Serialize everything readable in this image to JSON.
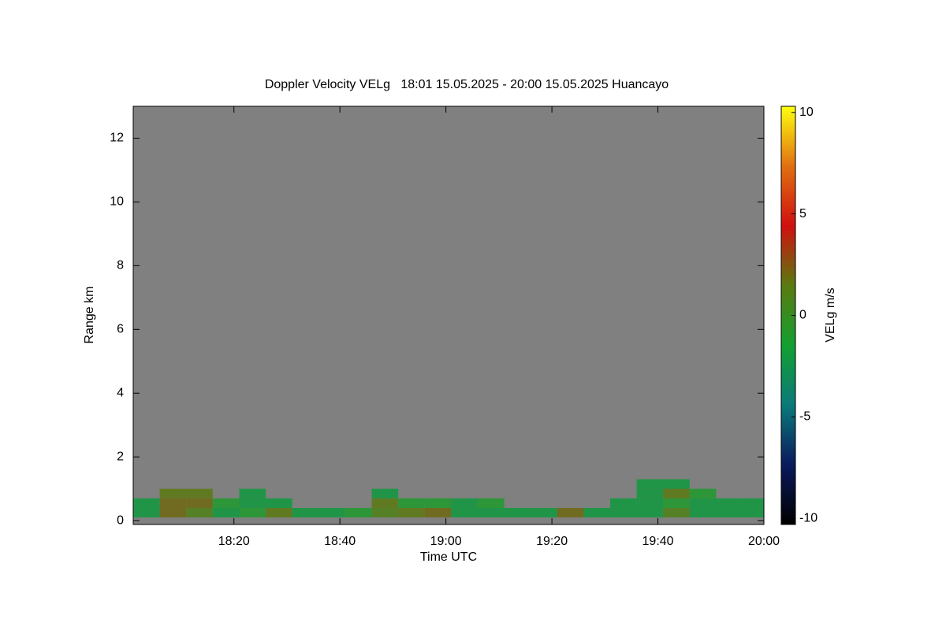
{
  "chart_data": {
    "type": "heatmap",
    "title": "Doppler Velocity VELg   18:01 15.05.2025 - 20:00 15.05.2025 Huancayo",
    "x_label": "Time UTC",
    "y_label": "Range km",
    "colorbar_label": "VELg m/s",
    "xlim": [
      1081,
      1200
    ],
    "xticks": [
      {
        "value": 1100,
        "label": "18:20"
      },
      {
        "value": 1120,
        "label": "18:40"
      },
      {
        "value": 1140,
        "label": "19:00"
      },
      {
        "value": 1160,
        "label": "19:20"
      },
      {
        "value": 1180,
        "label": "19:40"
      },
      {
        "value": 1200,
        "label": "20:00"
      }
    ],
    "ylim": [
      -0.12,
      13
    ],
    "yticks": [
      0,
      2,
      4,
      6,
      8,
      10,
      12
    ],
    "colorlim": [
      -10.3,
      10.3
    ],
    "cticks": [
      -10,
      -5,
      0,
      5,
      10
    ],
    "colormap": [
      "#000000",
      "#0a1a5c",
      "#0a7a7a",
      "#12a030",
      "#5a7a10",
      "#d01010",
      "#e07010",
      "#ffff10"
    ],
    "background": "#808080",
    "xbins": [
      1081,
      1086,
      1091,
      1096,
      1101,
      1106,
      1111,
      1116,
      1121,
      1126,
      1131,
      1136,
      1141,
      1146,
      1151,
      1156,
      1161,
      1166,
      1171,
      1176,
      1181,
      1186,
      1191,
      1196,
      1200
    ],
    "ybins": [
      0.1,
      0.4,
      0.7,
      1.0,
      1.3,
      1.6
    ],
    "z": [
      [
        -2,
        2,
        1,
        -2,
        -1,
        1.5,
        -2,
        -2,
        -1,
        1,
        1.5,
        2,
        -2,
        -2,
        -2,
        -2,
        2,
        -2,
        -2,
        -2,
        1,
        -2,
        -2,
        -2
      ],
      [
        -2,
        2,
        2,
        -1,
        -2,
        -2,
        null,
        null,
        null,
        1.5,
        -1,
        -1,
        -2,
        -1,
        null,
        null,
        null,
        null,
        -2,
        -2,
        -1,
        -2,
        -2,
        -2
      ],
      [
        null,
        1.5,
        1.5,
        null,
        -2,
        null,
        null,
        null,
        null,
        -2,
        null,
        null,
        null,
        null,
        null,
        null,
        null,
        null,
        null,
        -2,
        1.5,
        -1,
        null,
        null
      ],
      [
        null,
        null,
        null,
        null,
        null,
        null,
        null,
        null,
        null,
        null,
        null,
        null,
        null,
        null,
        null,
        null,
        null,
        null,
        null,
        -2,
        -2,
        null,
        null,
        null
      ],
      [
        null,
        null,
        null,
        null,
        null,
        null,
        null,
        null,
        null,
        null,
        null,
        null,
        null,
        null,
        null,
        null,
        null,
        null,
        null,
        null,
        null,
        null,
        null,
        null
      ]
    ]
  }
}
